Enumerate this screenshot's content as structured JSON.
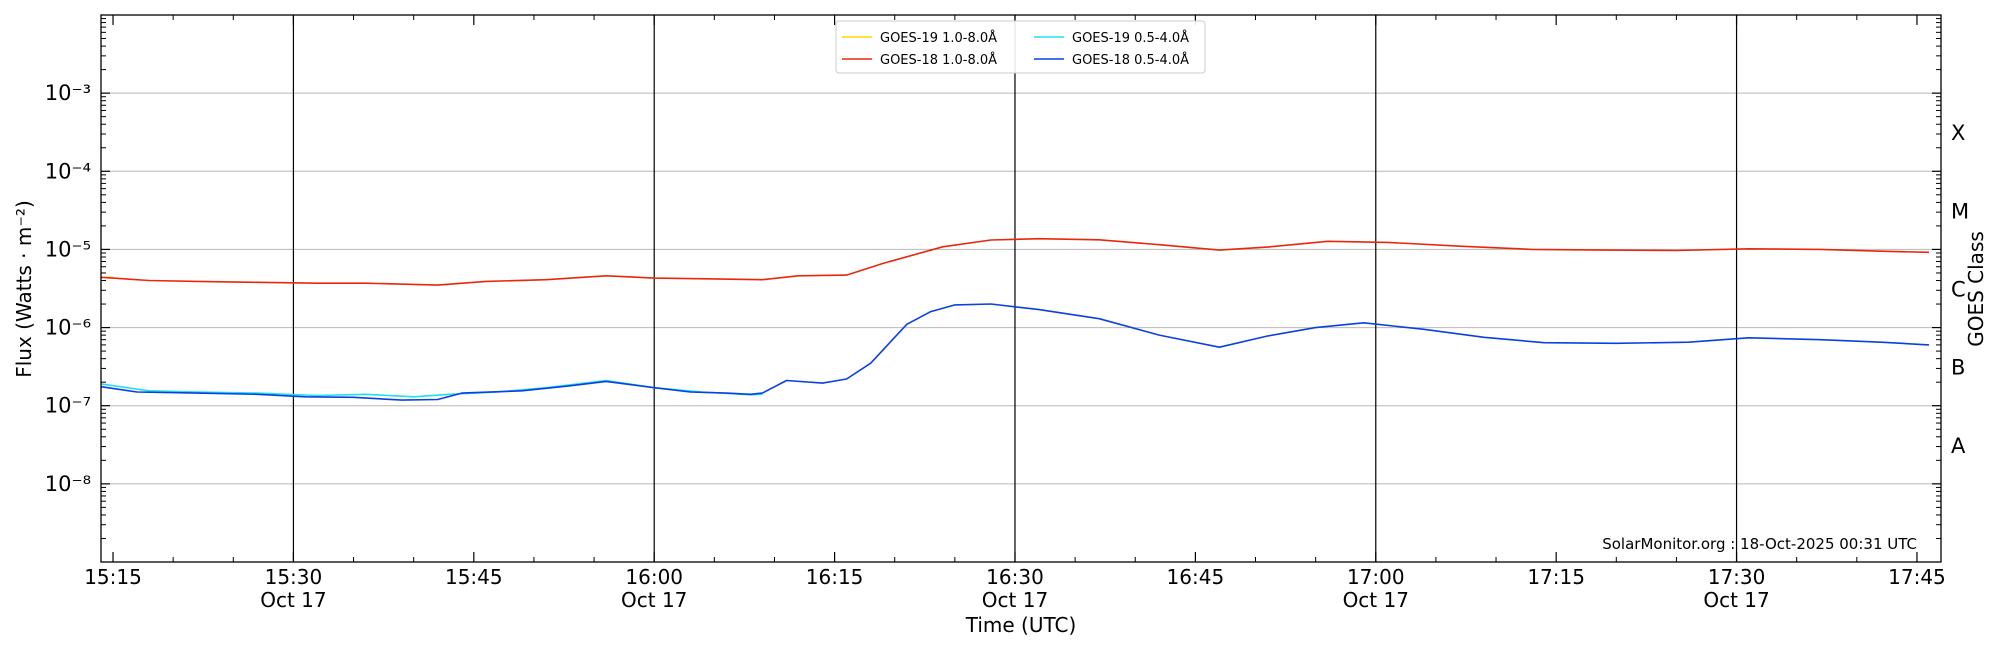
{
  "chart_data": {
    "type": "line",
    "title": "",
    "xlabel": "Time (UTC)",
    "ylabel": "Flux (Watts · m⁻²)",
    "ylabel_right": "GOES Class",
    "y_scale": "log",
    "ylim": [
      1e-09,
      0.01
    ],
    "y_ticks": [
      {
        "value": 1e-08,
        "label": "10⁻⁸"
      },
      {
        "value": 1e-07,
        "label": "10⁻⁷"
      },
      {
        "value": 1e-06,
        "label": "10⁻⁶"
      },
      {
        "value": 1e-05,
        "label": "10⁻⁵"
      },
      {
        "value": 0.0001,
        "label": "10⁻⁴"
      },
      {
        "value": 0.001,
        "label": "10⁻³"
      }
    ],
    "class_labels": [
      {
        "label": "A",
        "value": 3.16e-08
      },
      {
        "label": "B",
        "value": 3.16e-07
      },
      {
        "label": "C",
        "value": 3.16e-06
      },
      {
        "label": "M",
        "value": 3.16e-05
      },
      {
        "label": "X",
        "value": 0.000316
      }
    ],
    "x_axis": {
      "start": "15:14",
      "end": "17:47"
    },
    "x_ticks": [
      {
        "time": "15:15",
        "line1": "15:15",
        "line2": ""
      },
      {
        "time": "15:30",
        "line1": "15:30",
        "line2": "Oct 17"
      },
      {
        "time": "15:45",
        "line1": "15:45",
        "line2": ""
      },
      {
        "time": "16:00",
        "line1": "16:00",
        "line2": "Oct 17"
      },
      {
        "time": "16:15",
        "line1": "16:15",
        "line2": ""
      },
      {
        "time": "16:30",
        "line1": "16:30",
        "line2": "Oct 17"
      },
      {
        "time": "16:45",
        "line1": "16:45",
        "line2": ""
      },
      {
        "time": "17:00",
        "line1": "17:00",
        "line2": "Oct 17"
      },
      {
        "time": "17:15",
        "line1": "17:15",
        "line2": ""
      },
      {
        "time": "17:30",
        "line1": "17:30",
        "line2": "Oct 17"
      },
      {
        "time": "17:45",
        "line1": "17:45",
        "line2": ""
      }
    ],
    "vertical_lines": [
      "15:30",
      "16:00",
      "16:30",
      "17:00",
      "17:30"
    ],
    "grid": "horizontal at decades",
    "legend_position": "top-center",
    "annotation": "SolarMonitor.org : 18-Oct-2025 00:31 UTC",
    "series": [
      {
        "name": "GOES-19 1.0-8.0Å",
        "color": "#ffd700",
        "x": [
          "15:14",
          "15:15"
        ],
        "values": [
          4.4e-06,
          4.4e-06
        ]
      },
      {
        "name": "GOES-18 1.0-8.0Å",
        "color": "#e8280e",
        "x": [
          "15:14",
          "15:18",
          "15:22",
          "15:27",
          "15:32",
          "15:36",
          "15:42",
          "15:46",
          "15:51",
          "15:56",
          "16:00",
          "16:05",
          "16:09",
          "16:12",
          "16:16",
          "16:19",
          "16:24",
          "16:28",
          "16:32",
          "16:37",
          "16:42",
          "16:47",
          "16:51",
          "16:56",
          "17:01",
          "17:07",
          "17:13",
          "17:19",
          "17:25",
          "17:31",
          "17:37",
          "17:42",
          "17:46"
        ],
        "values": [
          4.4e-06,
          4e-06,
          3.9e-06,
          3.8e-06,
          3.7e-06,
          3.7e-06,
          3.5e-06,
          3.9e-06,
          4.1e-06,
          4.6e-06,
          4.3e-06,
          4.2e-06,
          4.1e-06,
          4.6e-06,
          4.7e-06,
          6.6e-06,
          1.08e-05,
          1.32e-05,
          1.37e-05,
          1.33e-05,
          1.15e-05,
          9.8e-06,
          1.07e-05,
          1.27e-05,
          1.23e-05,
          1.1e-05,
          1e-05,
          9.8e-06,
          9.7e-06,
          1.02e-05,
          1e-05,
          9.5e-06,
          9.2e-06
        ]
      },
      {
        "name": "GOES-19 0.5-4.0Å",
        "color": "#22e0f2",
        "x": [
          "15:14",
          "15:18",
          "15:22",
          "15:27",
          "15:32",
          "15:36",
          "15:40",
          "15:43",
          "15:47",
          "15:51",
          "15:56",
          "16:00",
          "16:04",
          "16:08",
          "16:09"
        ],
        "values": [
          1.9e-07,
          1.55e-07,
          1.5e-07,
          1.45e-07,
          1.35e-07,
          1.4e-07,
          1.3e-07,
          1.4e-07,
          1.5e-07,
          1.7e-07,
          2.1e-07,
          1.7e-07,
          1.5e-07,
          1.38e-07,
          1.4e-07
        ]
      },
      {
        "name": "GOES-18 0.5-4.0Å",
        "color": "#0a40e0",
        "x": [
          "15:14",
          "15:17",
          "15:22",
          "15:27",
          "15:31",
          "15:35",
          "15:39",
          "15:42",
          "15:44",
          "15:49",
          "15:53",
          "15:56",
          "16:00",
          "16:03",
          "16:06",
          "16:08",
          "16:09",
          "16:11",
          "16:14",
          "16:16",
          "16:18",
          "16:21",
          "16:23",
          "16:25",
          "16:28",
          "16:32",
          "16:37",
          "16:42",
          "16:47",
          "16:51",
          "16:55",
          "16:59",
          "17:04",
          "17:09",
          "17:14",
          "17:20",
          "17:26",
          "17:31",
          "17:37",
          "17:42",
          "17:46"
        ],
        "values": [
          1.75e-07,
          1.5e-07,
          1.45e-07,
          1.4e-07,
          1.3e-07,
          1.28e-07,
          1.18e-07,
          1.2e-07,
          1.45e-07,
          1.55e-07,
          1.8e-07,
          2.05e-07,
          1.7e-07,
          1.5e-07,
          1.45e-07,
          1.4e-07,
          1.45e-07,
          2.1e-07,
          1.95e-07,
          2.2e-07,
          3.5e-07,
          1.1e-06,
          1.6e-06,
          1.95e-06,
          2e-06,
          1.7e-06,
          1.3e-06,
          8e-07,
          5.6e-07,
          7.8e-07,
          1e-06,
          1.15e-06,
          9.5e-07,
          7.5e-07,
          6.4e-07,
          6.3e-07,
          6.5e-07,
          7.4e-07,
          7e-07,
          6.5e-07,
          6e-07
        ]
      }
    ]
  }
}
